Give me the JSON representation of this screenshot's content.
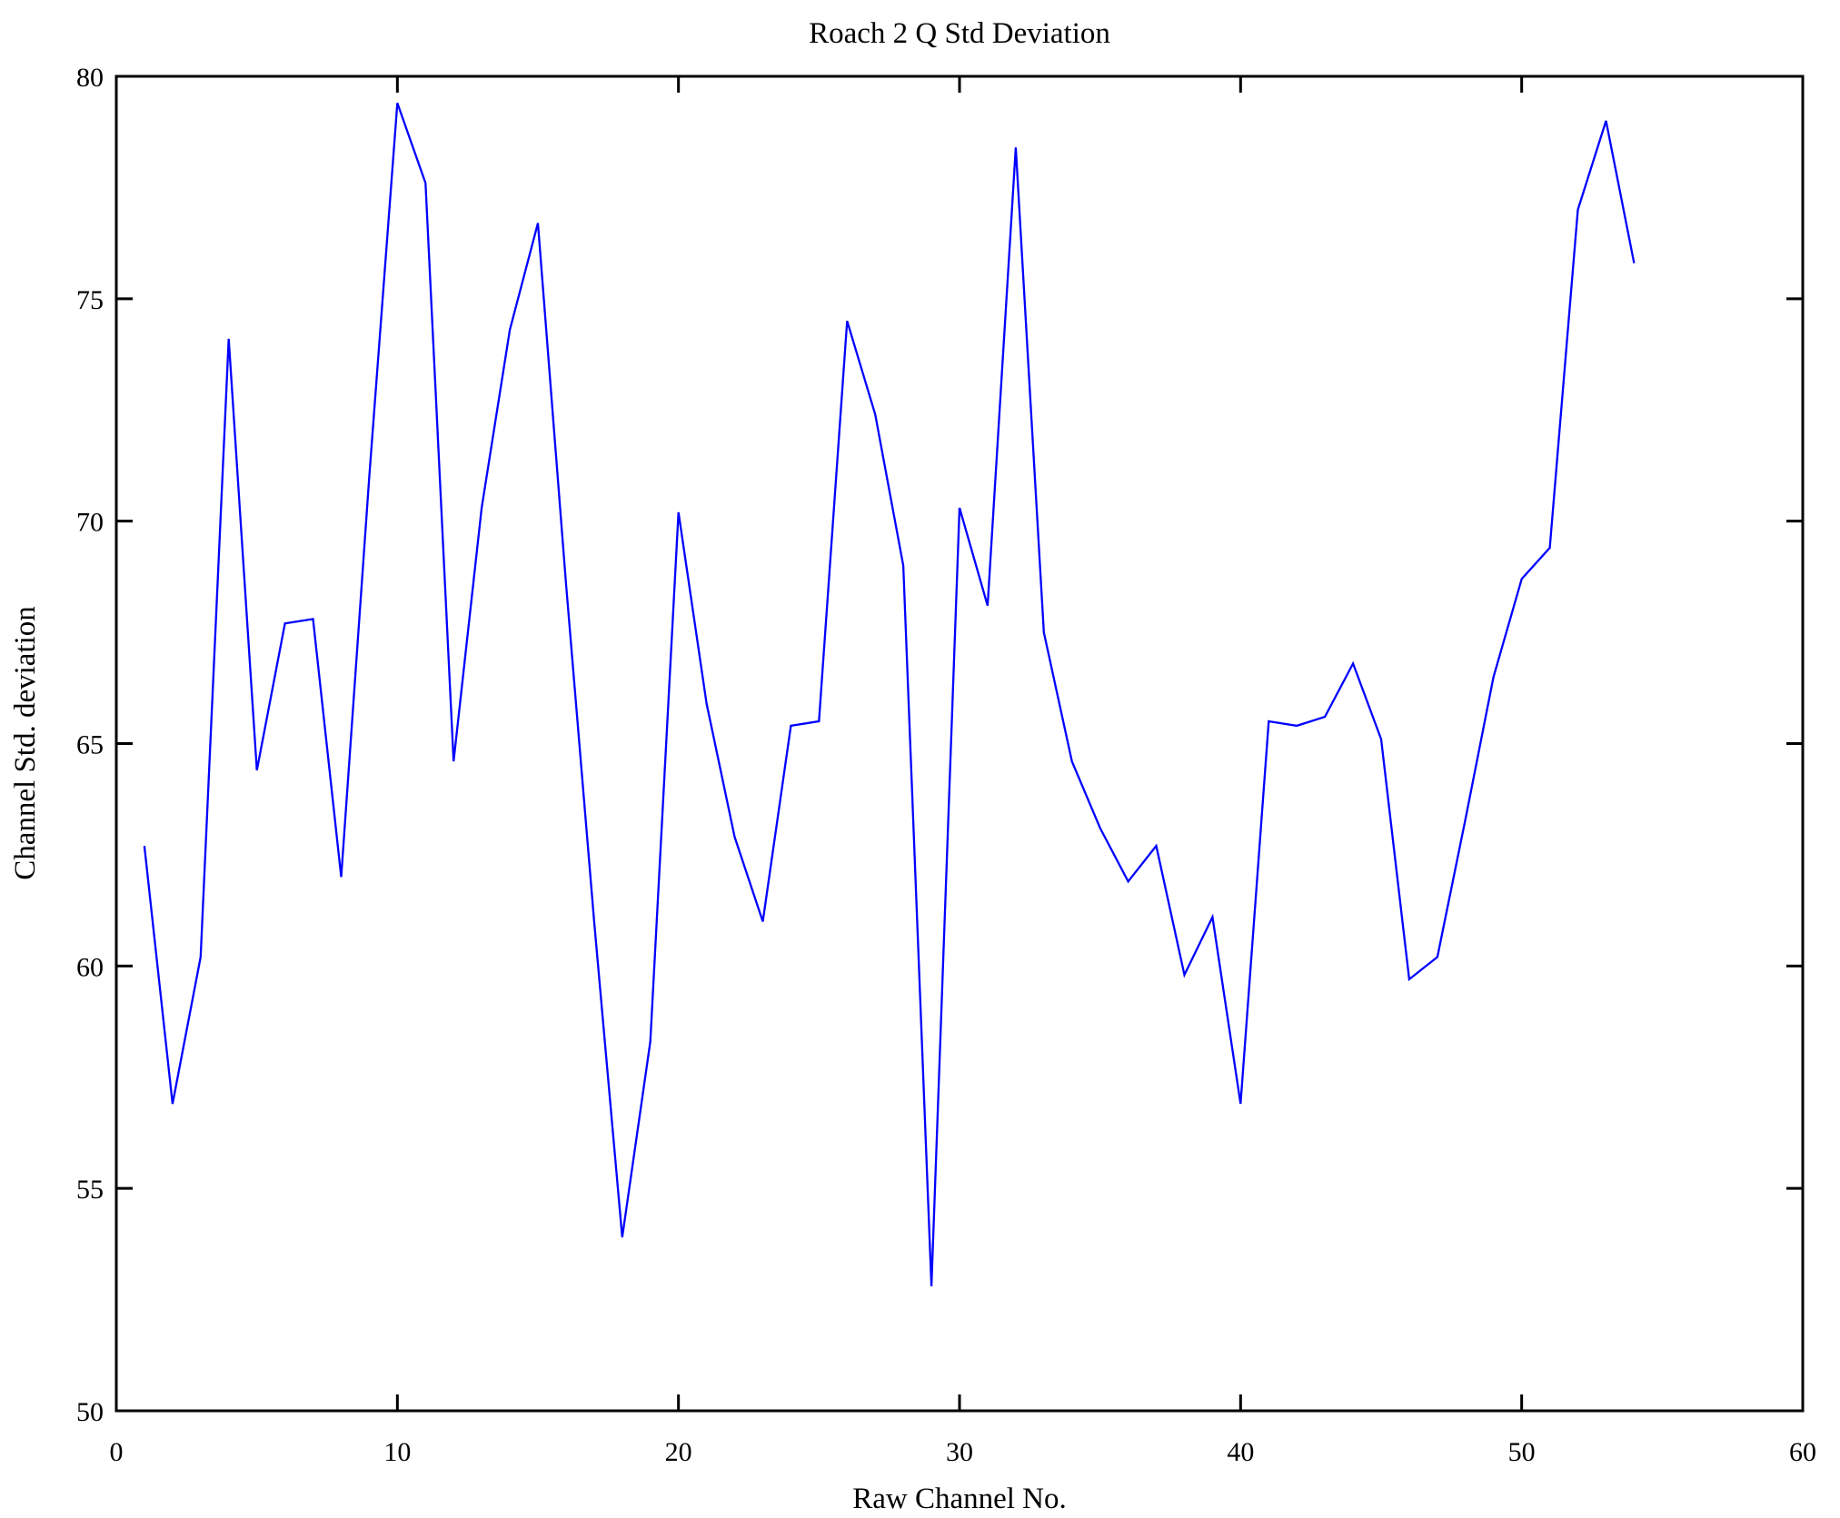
{
  "chart_data": {
    "type": "line",
    "title": "Roach 2 Q Std Deviation",
    "xlabel": "Raw Channel No.",
    "ylabel": "Channel Std. deviation",
    "xlim": [
      0,
      60
    ],
    "ylim": [
      50,
      80
    ],
    "x_ticks": [
      "0",
      "10",
      "20",
      "30",
      "40",
      "50",
      "60"
    ],
    "y_ticks": [
      "50",
      "55",
      "60",
      "65",
      "70",
      "75",
      "80"
    ],
    "grid": false,
    "legend_position": "none",
    "line_color": "#0000ff",
    "axis_color": "#000000",
    "background_color": "#ffffff",
    "x": [
      1,
      2,
      3,
      4,
      5,
      6,
      7,
      8,
      9,
      10,
      11,
      12,
      13,
      14,
      15,
      16,
      17,
      18,
      19,
      20,
      21,
      22,
      23,
      24,
      25,
      26,
      27,
      28,
      29,
      30,
      31,
      32,
      33,
      34,
      35,
      36,
      37,
      38,
      39,
      40,
      41,
      42,
      43,
      44,
      45,
      46,
      47,
      48,
      49,
      50,
      51,
      52,
      53,
      54
    ],
    "series": [
      {
        "name": "Channel Std. deviation",
        "values": [
          62.7,
          56.9,
          60.2,
          74.1,
          64.4,
          67.7,
          67.8,
          62.0,
          71.0,
          79.4,
          77.6,
          64.6,
          70.3,
          74.3,
          76.7,
          68.6,
          61.0,
          53.9,
          58.3,
          70.2,
          65.9,
          62.9,
          61.0,
          65.4,
          65.5,
          74.5,
          72.4,
          69.0,
          52.8,
          70.3,
          68.1,
          78.4,
          67.5,
          64.6,
          63.1,
          61.9,
          62.7,
          59.8,
          61.1,
          56.9,
          65.5,
          65.4,
          65.6,
          66.8,
          65.1,
          59.7,
          60.2,
          63.3,
          66.5,
          68.7,
          69.4,
          77.0,
          79.0,
          75.8
        ]
      }
    ]
  }
}
